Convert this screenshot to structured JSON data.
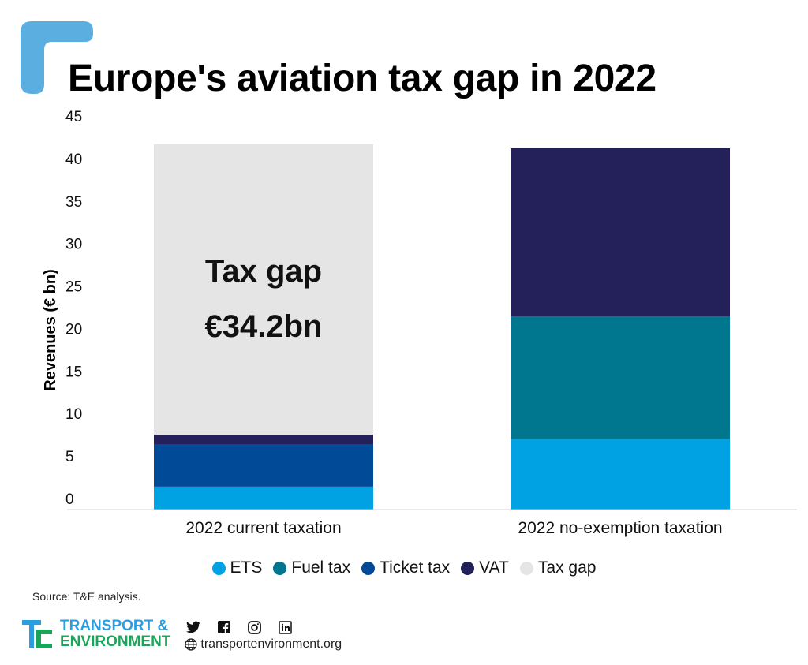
{
  "header": {
    "title": "Europe's aviation tax gap in 2022"
  },
  "colors": {
    "accent": "#5aafe0",
    "ets": "#00a2e3",
    "fuel_tax": "#00768f",
    "ticket_tax": "#014a98",
    "vat": "#23205a",
    "tax_gap": "#e5e5e5"
  },
  "chart_data": {
    "type": "bar",
    "stacked": true,
    "categories": [
      "2022 current taxation",
      "2022 no-exemption taxation"
    ],
    "series": [
      {
        "name": "ETS",
        "values": [
          2.7,
          8.3
        ],
        "color": "#00a2e3"
      },
      {
        "name": "Fuel tax",
        "values": [
          0,
          14.4
        ],
        "color": "#00768f"
      },
      {
        "name": "Ticket tax",
        "values": [
          5.0,
          0
        ],
        "color": "#014a98"
      },
      {
        "name": "VAT",
        "values": [
          1.1,
          19.8
        ],
        "color": "#23205a"
      },
      {
        "name": "Tax gap",
        "values": [
          34.2,
          0
        ],
        "color": "#e5e5e5"
      }
    ],
    "ylabel": "Revenues (€ bn)",
    "xlabel": "",
    "ylim": [
      0,
      45
    ],
    "yticks": [
      0,
      5,
      10,
      15,
      20,
      25,
      30,
      35,
      40,
      45
    ],
    "grid": false,
    "legend": "bottom",
    "annotation": {
      "line1": "Tax gap",
      "line2": "€34.2bn",
      "category": "2022 current taxation"
    }
  },
  "source": "Source: T&E analysis.",
  "footer": {
    "org_line1": "TRANSPORT &",
    "org_line2": "ENVIRONMENT",
    "website": "transportenvironment.org",
    "social_icons": [
      "twitter-icon",
      "facebook-icon",
      "instagram-icon",
      "linkedin-icon"
    ]
  }
}
